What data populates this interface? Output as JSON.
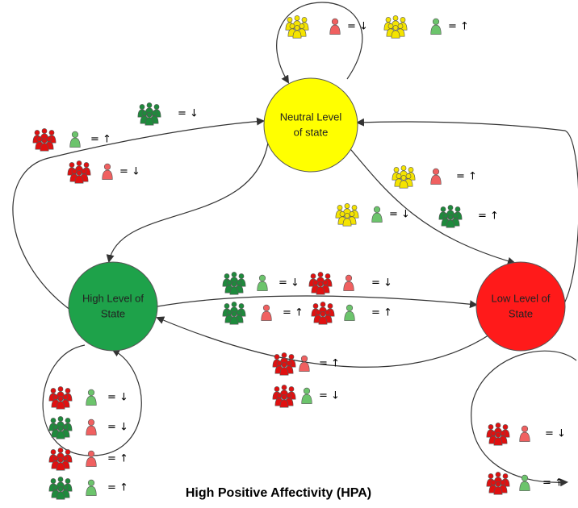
{
  "title": "High Positive Affectivity (HPA)",
  "nodes": [
    {
      "label": [
        "Neutral Level",
        "of state"
      ]
    },
    {
      "label": [
        "High Level of",
        "State"
      ]
    },
    {
      "label": [
        "Low Level of",
        "State"
      ]
    }
  ],
  "annotations": [
    {
      "text": "= ↓"
    },
    {
      "text": "= ↑"
    },
    {
      "text": "= ↓"
    },
    {
      "text": "= ↑"
    },
    {
      "text": "= ↓"
    },
    {
      "text": "= ↑"
    },
    {
      "text": "= ↓"
    },
    {
      "text": "= ↑"
    },
    {
      "text": "= ↓"
    },
    {
      "text": "= ↓"
    },
    {
      "text": "= ↑"
    },
    {
      "text": "= ↑"
    },
    {
      "text": "= ↑"
    },
    {
      "text": "= ↓"
    },
    {
      "text": "= ↓"
    },
    {
      "text": "= ↓"
    },
    {
      "text": "= ↑"
    },
    {
      "text": "= ↑"
    },
    {
      "text": "= ↓"
    },
    {
      "text": "= ↑"
    }
  ]
}
